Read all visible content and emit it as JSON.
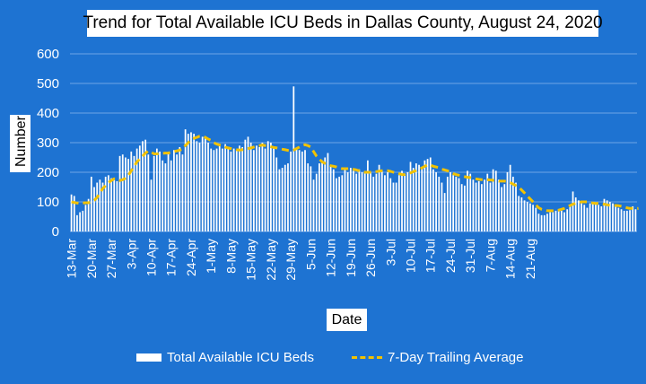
{
  "colors": {
    "background": "#1e73d2",
    "bars": "#ffffff",
    "average": "#f2c200",
    "text": "#ffffff"
  },
  "chart_data": {
    "type": "bar",
    "title": "Trend for Total Available ICU Beds in Dallas County, August 24, 2020",
    "xlabel": "Date",
    "ylabel": "Number",
    "ylim": [
      0,
      600
    ],
    "yticks": [
      "600",
      "500",
      "400",
      "300",
      "200",
      "100",
      "0"
    ],
    "grid": true,
    "legend_position": "bottom",
    "x_tick_labels": [
      "13-Mar",
      "20-Mar",
      "27-Mar",
      "3-Apr",
      "10-Apr",
      "17-Apr",
      "24-Apr",
      "1-May",
      "8-May",
      "15-May",
      "22-May",
      "29-May",
      "5-Jun",
      "12-Jun",
      "19-Jun",
      "26-Jun",
      "3-Jul",
      "10-Jul",
      "17-Jul",
      "24-Jul",
      "31-Jul",
      "7-Aug",
      "14-Aug",
      "21-Aug"
    ],
    "series": [
      {
        "name": "Total Available ICU Beds",
        "type": "bar",
        "values": [
          125,
          120,
          55,
          65,
          70,
          90,
          110,
          185,
          150,
          165,
          175,
          165,
          185,
          190,
          180,
          175,
          170,
          255,
          260,
          250,
          245,
          270,
          255,
          280,
          290,
          305,
          310,
          260,
          175,
          255,
          280,
          270,
          240,
          230,
          265,
          240,
          275,
          260,
          285,
          260,
          345,
          330,
          335,
          330,
          305,
          300,
          320,
          315,
          300,
          280,
          275,
          280,
          290,
          280,
          295,
          285,
          270,
          280,
          275,
          290,
          285,
          310,
          320,
          300,
          275,
          290,
          285,
          300,
          280,
          305,
          300,
          280,
          250,
          210,
          215,
          225,
          230,
          270,
          490,
          280,
          275,
          270,
          275,
          230,
          220,
          175,
          195,
          230,
          240,
          250,
          265,
          220,
          210,
          180,
          185,
          190,
          210,
          200,
          215,
          205,
          195,
          210,
          200,
          200,
          240,
          200,
          185,
          195,
          225,
          205,
          190,
          200,
          180,
          165,
          165,
          190,
          205,
          195,
          200,
          235,
          215,
          230,
          225,
          215,
          240,
          245,
          250,
          210,
          200,
          185,
          165,
          130,
          185,
          200,
          190,
          185,
          180,
          160,
          155,
          205,
          195,
          175,
          165,
          170,
          160,
          175,
          195,
          165,
          210,
          205,
          175,
          150,
          160,
          200,
          225,
          185,
          165,
          120,
          115,
          105,
          100,
          95,
          90,
          80,
          60,
          55,
          55,
          60,
          65,
          65,
          70,
          75,
          70,
          65,
          75,
          90,
          135,
          115,
          105,
          95,
          90,
          80,
          95,
          100,
          95,
          90,
          85,
          110,
          105,
          100,
          95,
          85,
          80,
          75,
          70,
          70,
          72,
          85,
          75
        ]
      },
      {
        "name": "7-Day Trailing Average",
        "type": "line",
        "values": [
          100,
          98,
          96,
          95,
          96,
          97,
          97,
          100,
          105,
          115,
          130,
          145,
          155,
          165,
          172,
          178,
          175,
          172,
          175,
          180,
          190,
          205,
          220,
          235,
          245,
          255,
          265,
          272,
          268,
          262,
          262,
          263,
          264,
          265,
          265,
          268,
          270,
          272,
          275,
          278,
          290,
          300,
          310,
          315,
          318,
          322,
          322,
          318,
          312,
          308,
          300,
          295,
          292,
          290,
          285,
          282,
          280,
          278,
          276,
          275,
          276,
          278,
          280,
          282,
          285,
          288,
          290,
          292,
          290,
          288,
          286,
          284,
          282,
          280,
          278,
          276,
          274,
          272,
          275,
          280,
          285,
          290,
          293,
          290,
          285,
          270,
          255,
          245,
          235,
          230,
          225,
          222,
          220,
          218,
          215,
          212,
          212,
          212,
          212,
          210,
          208,
          205,
          202,
          200,
          200,
          200,
          200,
          202,
          204,
          205,
          205,
          205,
          203,
          200,
          198,
          195,
          192,
          192,
          195,
          198,
          202,
          206,
          210,
          215,
          220,
          225,
          225,
          220,
          218,
          215,
          210,
          208,
          205,
          200,
          195,
          192,
          190,
          188,
          185,
          183,
          182,
          180,
          178,
          176,
          175,
          175,
          175,
          174,
          173,
          172,
          170,
          170,
          170,
          168,
          165,
          160,
          155,
          150,
          140,
          130,
          120,
          110,
          100,
          90,
          80,
          75,
          72,
          70,
          70,
          70,
          70,
          72,
          75,
          78,
          82,
          88,
          92,
          95,
          98,
          100,
          100,
          100,
          98,
          96,
          95,
          95,
          94,
          92,
          90,
          88,
          88,
          88,
          87,
          85,
          83,
          80,
          78,
          78,
          77,
          78
        ]
      }
    ]
  },
  "legend": {
    "bars_label": "Total Available ICU Beds",
    "line_label": "7-Day Trailing Average"
  }
}
